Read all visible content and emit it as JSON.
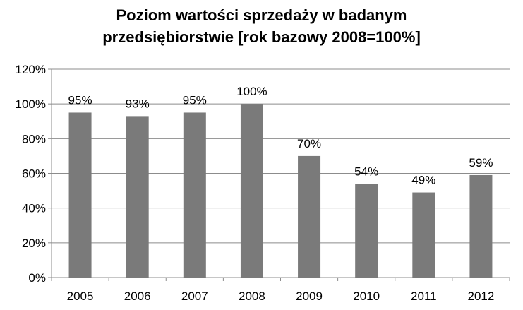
{
  "chart_data": {
    "type": "bar",
    "title_lines": [
      "Poziom wartości sprzedaży w badanym",
      "przedsiębiorstwie [rok bazowy 2008=100%]"
    ],
    "categories": [
      "2005",
      "2006",
      "2007",
      "2008",
      "2009",
      "2010",
      "2011",
      "2012"
    ],
    "values": [
      95,
      93,
      95,
      100,
      70,
      54,
      49,
      59
    ],
    "data_labels": [
      "95%",
      "93%",
      "95%",
      "100%",
      "70%",
      "54%",
      "49%",
      "59%"
    ],
    "y_ticks": [
      "0%",
      "20%",
      "40%",
      "60%",
      "80%",
      "100%",
      "120%"
    ],
    "ylim": [
      0,
      120
    ],
    "grid": true,
    "bar_color": "#7a7a7a",
    "grid_color": "#8c8c8c"
  }
}
